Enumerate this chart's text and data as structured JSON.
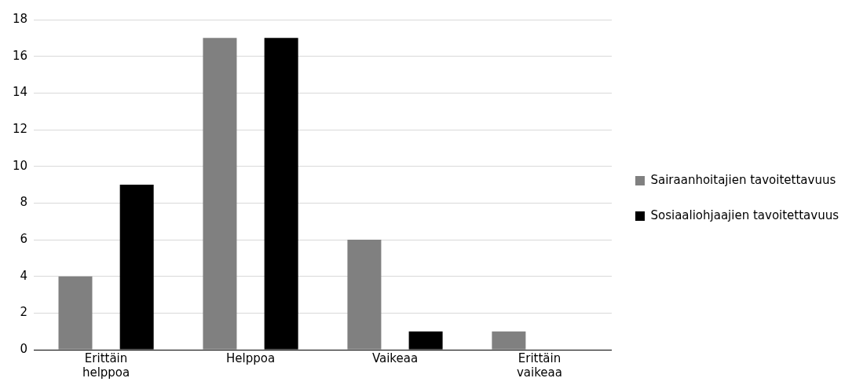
{
  "chart_data": {
    "type": "bar",
    "categories": [
      "Erittäin helppoa",
      "Helppoa",
      "Vaikeaa",
      "Erittäin vaikeaa"
    ],
    "series": [
      {
        "name": "Sairaanhoitajien tavoitettavuus",
        "color": "#808080",
        "values": [
          4,
          17,
          6,
          1
        ]
      },
      {
        "name": "Sosiaaliohjaajien tavoitettavuus",
        "color": "#000000",
        "values": [
          9,
          17,
          1,
          0
        ]
      }
    ],
    "ylim": [
      0,
      18
    ],
    "yticks": [
      0,
      2,
      4,
      6,
      8,
      10,
      12,
      14,
      16,
      18
    ],
    "grid": "y",
    "legend": "right"
  }
}
